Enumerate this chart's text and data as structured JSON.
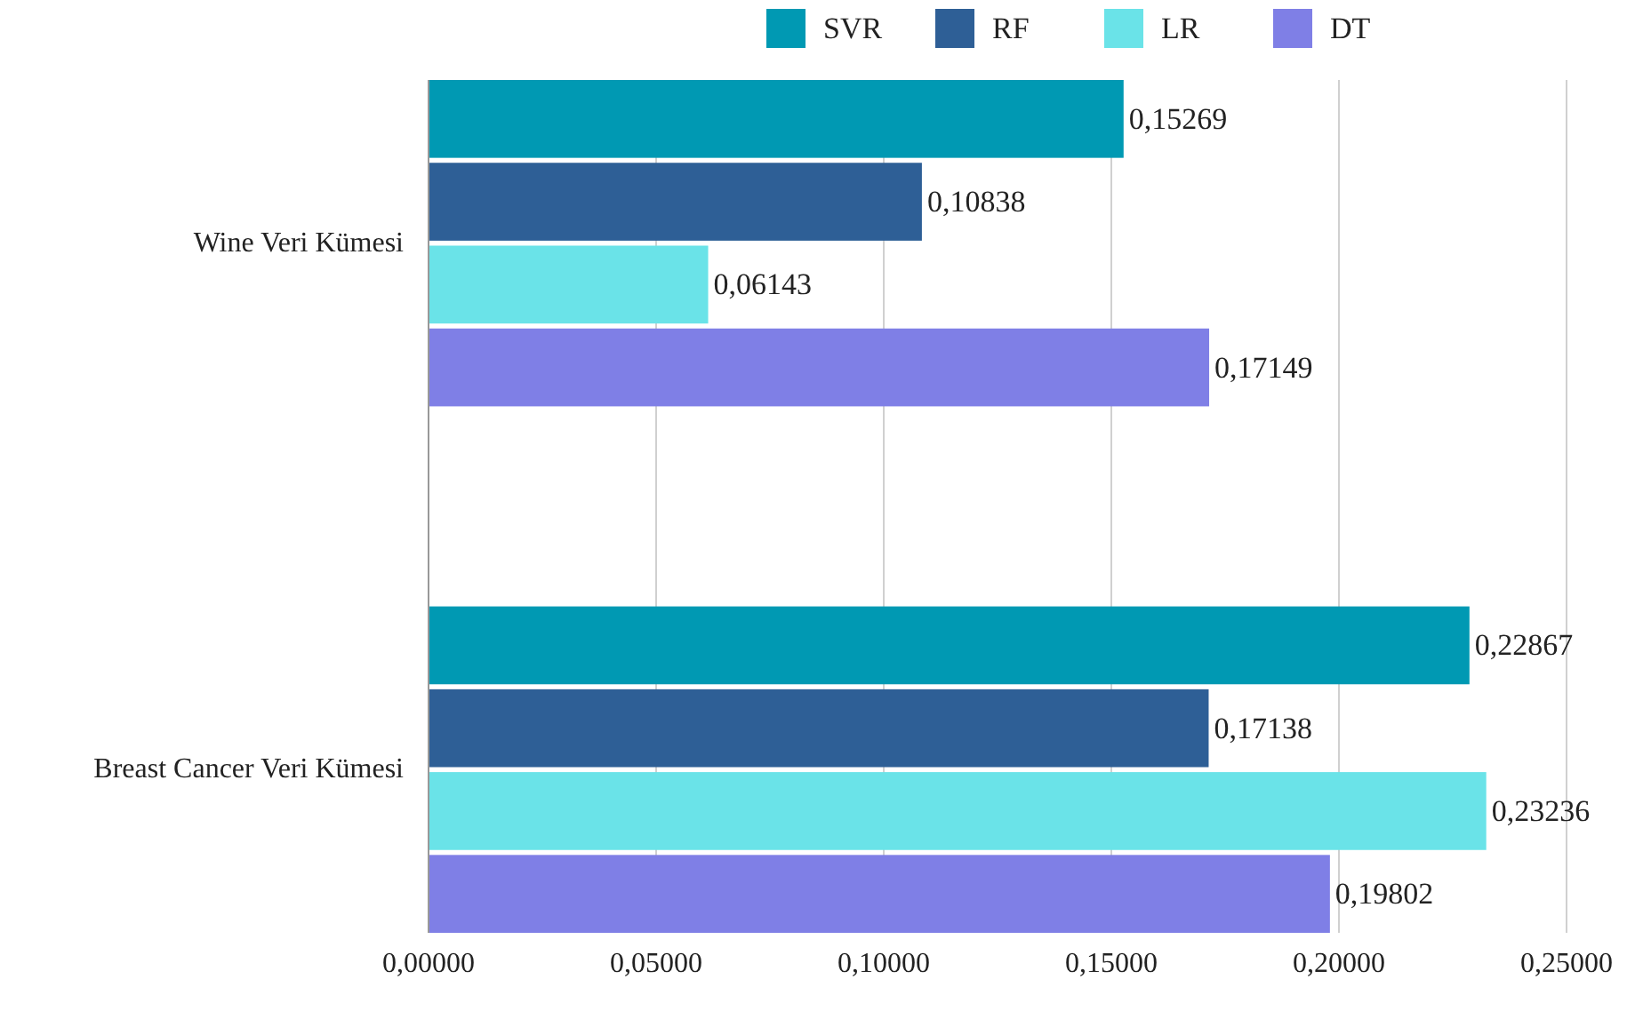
{
  "chart_data": {
    "type": "bar",
    "orientation": "horizontal",
    "categories": [
      "Wine Veri Kümesi",
      "Breast Cancer Veri Kümesi"
    ],
    "series": [
      {
        "name": "SVR",
        "color": "#0099b3",
        "values": [
          0.15269,
          0.22867
        ],
        "value_labels": [
          "0,15269",
          "0,22867"
        ]
      },
      {
        "name": "RF",
        "color": "#2e5f96",
        "values": [
          0.10838,
          0.17138
        ],
        "value_labels": [
          "0,10838",
          "0,17138"
        ]
      },
      {
        "name": "LR",
        "color": "#6ae3e8",
        "values": [
          0.06143,
          0.23236
        ],
        "value_labels": [
          "0,06143",
          "0,23236"
        ]
      },
      {
        "name": "DT",
        "color": "#7f7fe6",
        "values": [
          0.17149,
          0.19802
        ],
        "value_labels": [
          "0,17149",
          "0,19802"
        ]
      }
    ],
    "xlim": [
      0,
      0.25
    ],
    "xticks": [
      {
        "value": 0,
        "label": "0,00000"
      },
      {
        "value": 0.05,
        "label": "0,05000"
      },
      {
        "value": 0.1,
        "label": "0,10000"
      },
      {
        "value": 0.15,
        "label": "0,15000"
      },
      {
        "value": 0.2,
        "label": "0,20000"
      },
      {
        "value": 0.25,
        "label": "0,25000"
      }
    ],
    "grid": "x",
    "legend": "top"
  }
}
